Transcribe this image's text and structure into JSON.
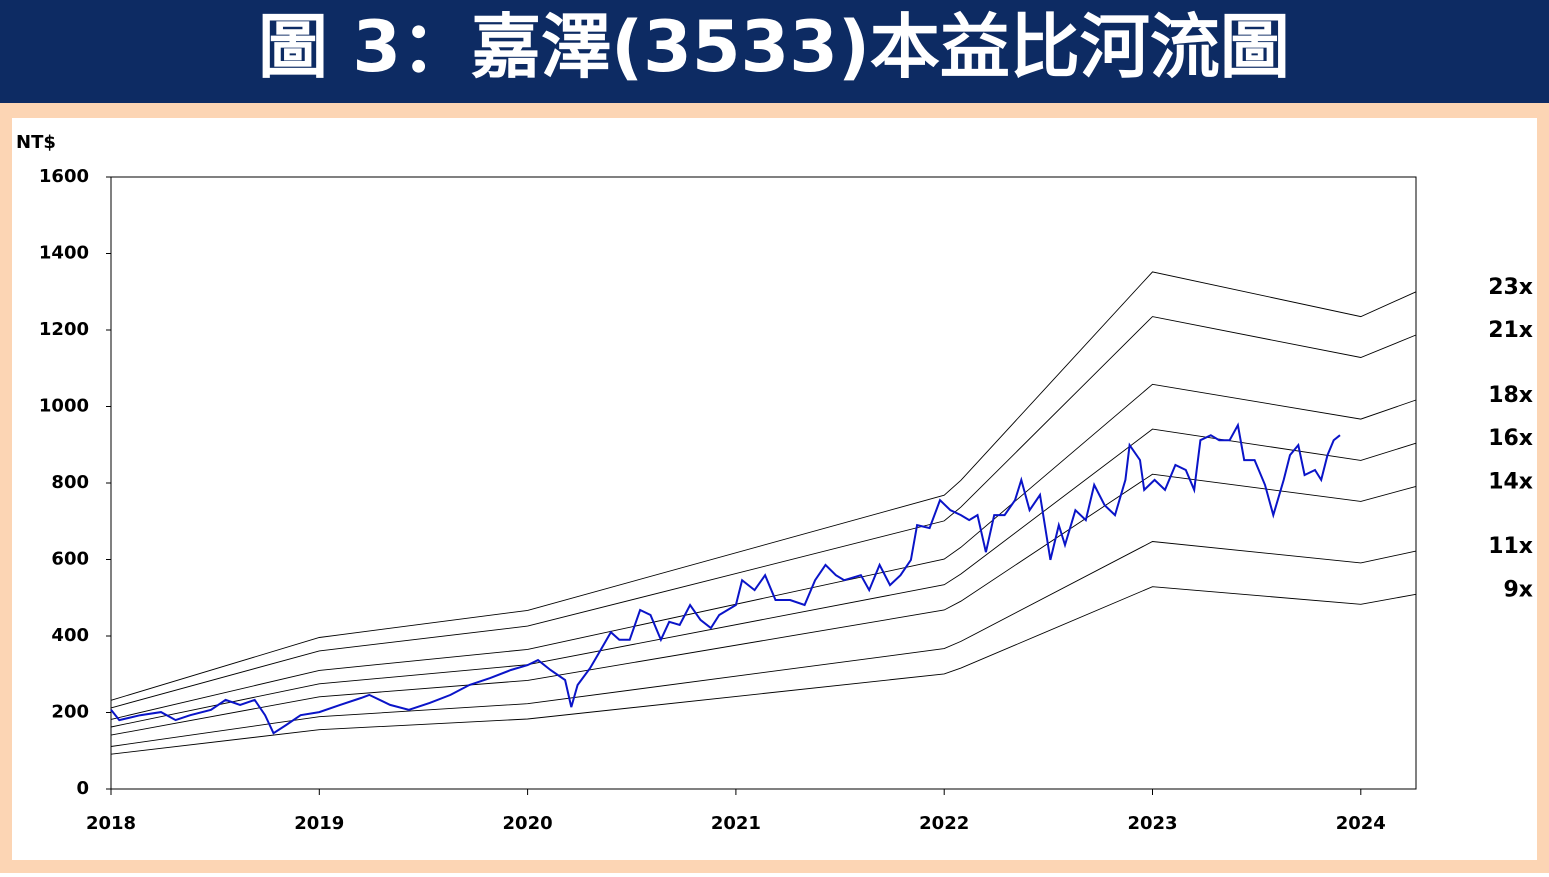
{
  "chart_data": {
    "type": "line",
    "title": "圖 3：嘉澤(3533)本益比河流圖",
    "ylabel": "NT$",
    "xlim": [
      2018,
      2024.265
    ],
    "ylim": [
      0,
      1600
    ],
    "xticks": [
      2018,
      2019,
      2020,
      2021,
      2022,
      2023,
      2024
    ],
    "yticks": [
      0,
      200,
      400,
      600,
      800,
      1000,
      1200,
      1400,
      1600
    ],
    "series": [
      {
        "name": "23x",
        "color": "#000000",
        "x": [
          2018,
          2019,
          2020,
          2022,
          2022.08,
          2023,
          2024,
          2024.265
        ],
        "values": [
          232,
          396,
          467,
          768,
          807,
          1352,
          1235,
          1300
        ]
      },
      {
        "name": "21x",
        "color": "#000000",
        "x": [
          2018,
          2019,
          2020,
          2022,
          2022.08,
          2023,
          2024,
          2024.265
        ],
        "values": [
          212,
          361,
          426,
          701,
          737,
          1235,
          1128,
          1187
        ]
      },
      {
        "name": "18x",
        "color": "#000000",
        "x": [
          2018,
          2019,
          2020,
          2022,
          2022.08,
          2023,
          2024,
          2024.265
        ],
        "values": [
          182,
          310,
          365,
          601,
          632,
          1058,
          967,
          1017
        ]
      },
      {
        "name": "16x",
        "color": "#000000",
        "x": [
          2018,
          2019,
          2020,
          2022,
          2022.08,
          2023,
          2024,
          2024.265
        ],
        "values": [
          162,
          275,
          325,
          534,
          562,
          941,
          859,
          904
        ]
      },
      {
        "name": "14x",
        "color": "#000000",
        "x": [
          2018,
          2019,
          2020,
          2022,
          2022.08,
          2023,
          2024,
          2024.265
        ],
        "values": [
          141,
          241,
          284,
          468,
          491,
          823,
          752,
          791
        ]
      },
      {
        "name": "11x",
        "color": "#000000",
        "x": [
          2018,
          2019,
          2020,
          2022,
          2022.08,
          2023,
          2024,
          2024.265
        ],
        "values": [
          111,
          189,
          223,
          367,
          386,
          647,
          591,
          622
        ]
      },
      {
        "name": "9x",
        "color": "#000000",
        "x": [
          2018,
          2019,
          2020,
          2022,
          2022.08,
          2023,
          2024,
          2024.265
        ],
        "values": [
          91,
          155,
          183,
          301,
          316,
          529,
          483,
          509
        ]
      },
      {
        "color": "#0a14c8",
        "x": [
          2018.0,
          2018.04,
          2018.14,
          2018.24,
          2018.31,
          2018.38,
          2018.48,
          2018.55,
          2018.62,
          2018.69,
          2018.74,
          2018.78,
          2018.84,
          2018.91,
          2019.0,
          2019.1,
          2019.2,
          2019.24,
          2019.34,
          2019.43,
          2019.53,
          2019.63,
          2019.72,
          2019.82,
          2019.92,
          2020.0,
          2020.05,
          2020.11,
          2020.18,
          2020.21,
          2020.24,
          2020.3,
          2020.35,
          2020.4,
          2020.44,
          2020.49,
          2020.54,
          2020.59,
          2020.64,
          2020.68,
          2020.73,
          2020.78,
          2020.83,
          2020.88,
          2020.92,
          2021.0,
          2021.03,
          2021.09,
          2021.14,
          2021.19,
          2021.26,
          2021.33,
          2021.38,
          2021.43,
          2021.48,
          2021.52,
          2021.6,
          2021.64,
          2021.69,
          2021.74,
          2021.79,
          2021.84,
          2021.87,
          2021.93,
          2021.98,
          2022.03,
          2022.08,
          2022.12,
          2022.16,
          2022.2,
          2022.24,
          2022.29,
          2022.34,
          2022.37,
          2022.41,
          2022.46,
          2022.51,
          2022.55,
          2022.58,
          2022.63,
          2022.68,
          2022.72,
          2022.77,
          2022.82,
          2022.87,
          2022.89,
          2022.94,
          2022.96,
          2023.01,
          2023.06,
          2023.11,
          2023.16,
          2023.2,
          2023.23,
          2023.28,
          2023.32,
          2023.37,
          2023.41,
          2023.44,
          2023.49,
          2023.54,
          2023.58,
          2023.63,
          2023.66,
          2023.7,
          2023.73,
          2023.78,
          2023.81,
          2023.84,
          2023.87,
          2023.9
        ],
        "values": [
          207,
          180,
          193,
          201,
          180,
          193,
          207,
          233,
          220,
          233,
          193,
          146,
          167,
          193,
          201,
          220,
          238,
          246,
          220,
          207,
          225,
          246,
          272,
          290,
          311,
          324,
          337,
          311,
          285,
          214,
          272,
          316,
          363,
          410,
          390,
          390,
          468,
          455,
          390,
          437,
          429,
          481,
          442,
          421,
          455,
          481,
          546,
          520,
          559,
          494,
          494,
          481,
          546,
          586,
          559,
          546,
          559,
          520,
          586,
          533,
          559,
          599,
          690,
          682,
          755,
          729,
          716,
          703,
          716,
          619,
          716,
          716,
          755,
          808,
          729,
          769,
          599,
          690,
          638,
          729,
          703,
          795,
          742,
          716,
          808,
          899,
          860,
          782,
          808,
          782,
          847,
          834,
          782,
          912,
          925,
          912,
          912,
          951,
          860,
          860,
          795,
          716,
          808,
          873,
          899,
          821,
          834,
          808,
          873,
          912,
          925
        ]
      }
    ]
  }
}
